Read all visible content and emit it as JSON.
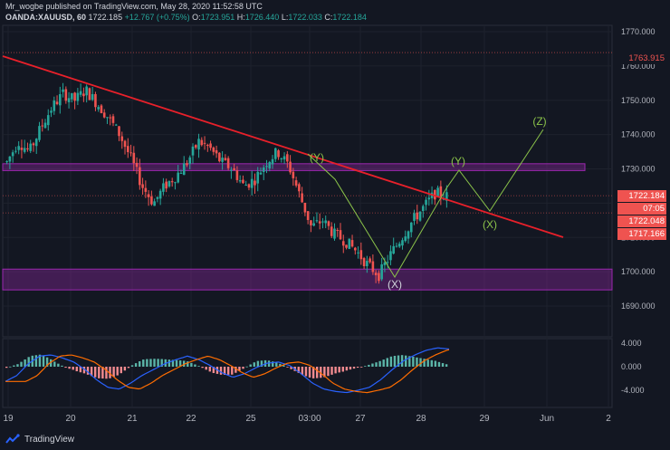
{
  "header": {
    "line1": "Mr_wogbe published on TradingView.com, May 28, 2020 11:52:58 UTC",
    "symbol": "OANDA:XAUUSD, 60",
    "last": "1722.185",
    "change": "+12.767 (+0.75%)",
    "o_label": "O:",
    "o": "1723.951",
    "h_label": "H:",
    "h": "1726.440",
    "l_label": "L:",
    "l": "1722.033",
    "c_label": "C:",
    "c": "1722.184"
  },
  "price_axis": [
    "1770.000",
    "1760.000",
    "1750.000",
    "1740.000",
    "1730.000",
    "1710.000",
    "1700.000",
    "1690.000"
  ],
  "price_tags": [
    {
      "label": "1763.915",
      "bg": "#131722",
      "color": "#ef5350"
    },
    {
      "label": "1722.184",
      "bg": "#ef5350",
      "color": "#ffffff"
    },
    {
      "label": "07:05",
      "bg": "#ef5350",
      "color": "#ffffff"
    },
    {
      "label": "1722.048",
      "bg": "#ef5350",
      "color": "#ffffff"
    },
    {
      "label": "1717.166",
      "bg": "#ef5350",
      "color": "#ffffff"
    }
  ],
  "osc_axis": [
    "4.000",
    "0.000",
    "-4.000"
  ],
  "time_axis": [
    "19",
    "20",
    "21",
    "22",
    "25",
    "03:00",
    "27",
    "28",
    "29",
    "Jun",
    "2"
  ],
  "wave_labels": {
    "y_top": "(Y)",
    "x_right": "(X)",
    "z": "(Z)",
    "x_bottom": "(X)"
  },
  "footer": {
    "brand": "TradingView"
  },
  "colors": {
    "bg": "#131722",
    "up": "#26a69a",
    "down": "#ef5350",
    "trend": "#e8202a",
    "zone": "#9c27b0",
    "wave": "#8bc34a"
  },
  "chart_data": {
    "type": "candlestick",
    "symbol": "OANDA:XAUUSD",
    "interval": "60",
    "ylim": [
      1685,
      1772
    ],
    "x_labels": [
      "19",
      "20",
      "21",
      "22",
      "25",
      "03:00",
      "27",
      "28",
      "29",
      "Jun",
      "2"
    ],
    "trendline": [
      [
        0,
        1762
      ],
      [
        1,
        1713
      ]
    ],
    "resistance_zone": [
      1729.5,
      1731.5
    ],
    "support_zone": [
      1695.5,
      1700.5
    ],
    "close_path": [
      1732,
      1738,
      1735,
      1742,
      1748,
      1752,
      1750,
      1753,
      1749,
      1745,
      1740,
      1733,
      1725,
      1720,
      1725,
      1728,
      1732,
      1738,
      1736,
      1732,
      1730,
      1725,
      1727,
      1732,
      1735,
      1731,
      1722,
      1713,
      1715,
      1711,
      1709,
      1706,
      1702,
      1699,
      1705,
      1710,
      1715,
      1719,
      1723,
      1722
    ],
    "macd_path": [
      -2.5,
      -1.5,
      0.5,
      1.8,
      2.0,
      1.5,
      0.8,
      -0.5,
      -2.2,
      -3.5,
      -3.8,
      -2.8,
      -1.5,
      -0.5,
      0.5,
      1.2,
      1.8,
      1.2,
      0.2,
      -1.0,
      -1.8,
      -1.2,
      -0.2,
      0.6,
      0.8,
      0.2,
      -1.2,
      -2.8,
      -3.8,
      -4.2,
      -4.4,
      -4.0,
      -3.5,
      -2.2,
      -0.5,
      1.0,
      2.0,
      2.8,
      3.2,
      3.0
    ]
  }
}
